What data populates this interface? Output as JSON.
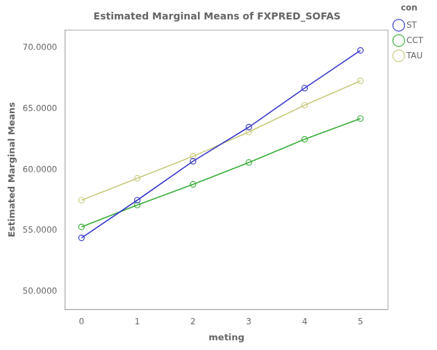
{
  "chart_data": {
    "type": "line",
    "title": "Estimated Marginal Means of FXPRED_SOFAS",
    "xlabel": "meting",
    "ylabel": "Estimated Marginal Means",
    "legend_title": "con",
    "legend": "right",
    "grid": false,
    "marker": "circle",
    "x": [
      0,
      1,
      2,
      3,
      4,
      5
    ],
    "xlim": [
      -0.3,
      5.5
    ],
    "xticks": [
      0,
      1,
      2,
      3,
      4,
      5
    ],
    "ylim": [
      48.5,
      71.5
    ],
    "yticks": [
      {
        "value": 50.0,
        "label": "50.0000"
      },
      {
        "value": 55.0,
        "label": "55.0000"
      },
      {
        "value": 60.0,
        "label": "60.0000"
      },
      {
        "value": 65.0,
        "label": "65.0000"
      },
      {
        "value": 70.0,
        "label": "70.0000"
      }
    ],
    "series": [
      {
        "name": "ST",
        "color": "#3333cc",
        "values": [
          54.4,
          57.5,
          60.7,
          63.5,
          66.7,
          69.8
        ]
      },
      {
        "name": "CCT",
        "color": "#33aa33",
        "values": [
          55.3,
          57.1,
          58.8,
          60.6,
          62.5,
          64.2
        ]
      },
      {
        "name": "TAU",
        "color": "#c8c87a",
        "values": [
          57.5,
          59.3,
          61.1,
          63.1,
          65.3,
          67.3
        ]
      }
    ]
  }
}
